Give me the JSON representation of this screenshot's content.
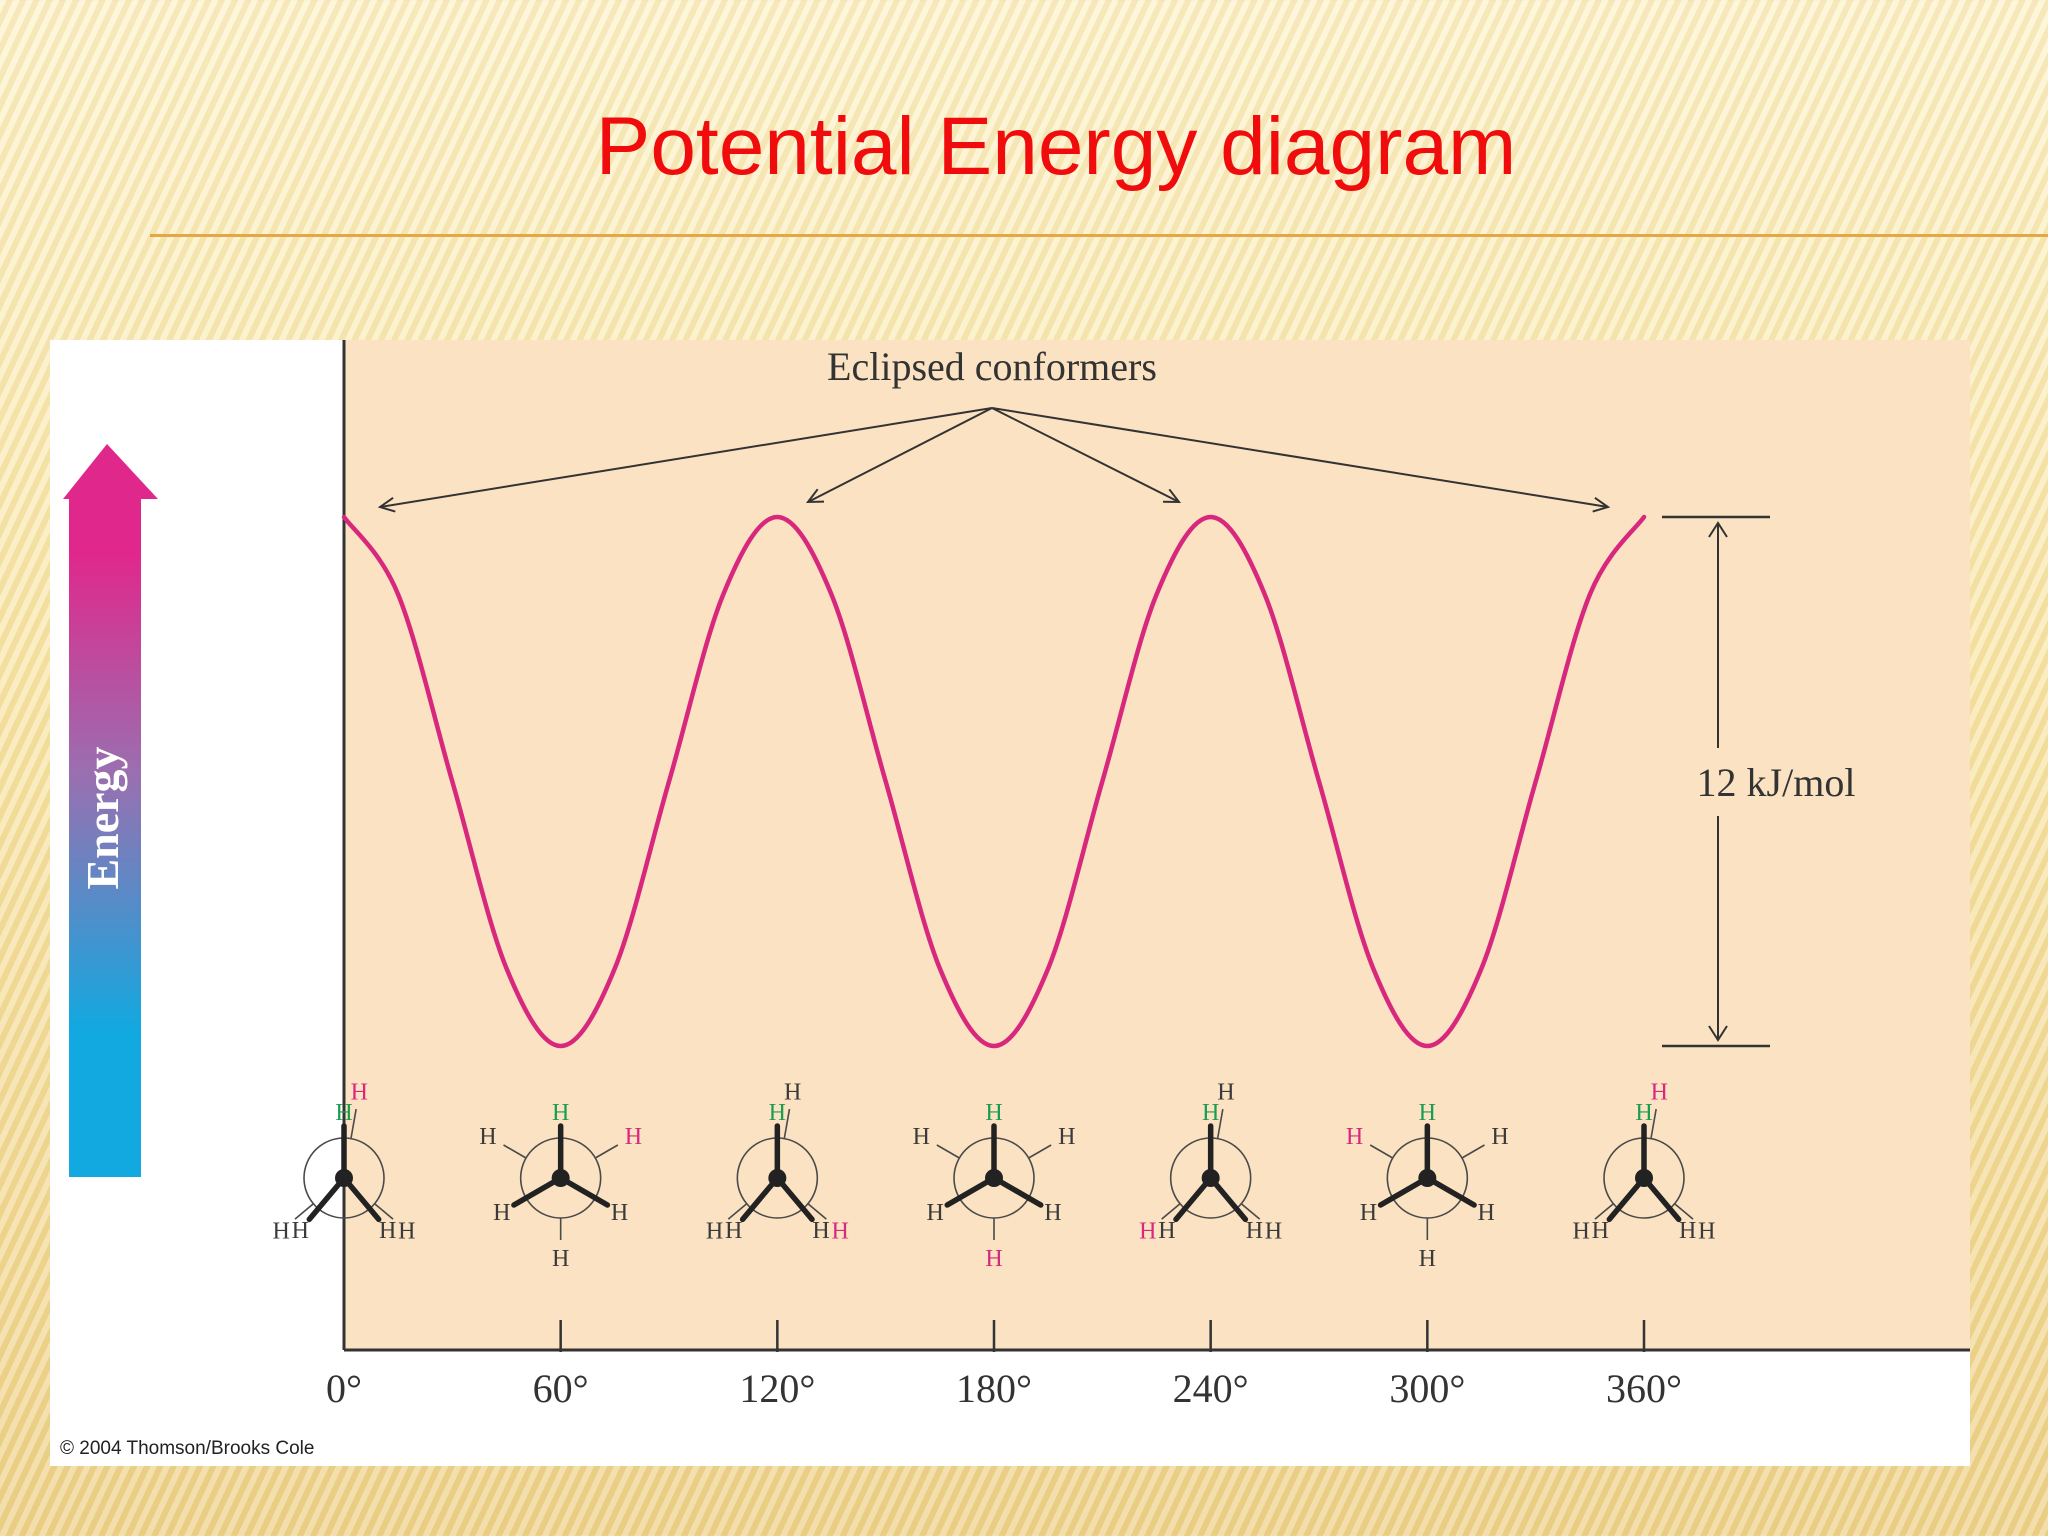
{
  "slide": {
    "title": "Potential Energy diagram"
  },
  "chart_data": {
    "type": "line",
    "title": "",
    "xlabel": "",
    "ylabel": "Energy",
    "x_ticks": [
      "0°",
      "60°",
      "120°",
      "180°",
      "240°",
      "300°",
      "360°"
    ],
    "xlim": [
      0,
      360
    ],
    "ylim": [
      0,
      12
    ],
    "series": [
      {
        "name": "",
        "color": "#d8287e",
        "x": [
          0,
          15,
          30,
          45,
          60,
          75,
          90,
          105,
          120,
          135,
          150,
          165,
          180,
          195,
          210,
          225,
          240,
          255,
          270,
          285,
          300,
          315,
          330,
          345,
          360
        ],
        "y": [
          12,
          10.24,
          6,
          1.76,
          0,
          1.76,
          6,
          10.24,
          12,
          10.24,
          6,
          1.76,
          0,
          1.76,
          6,
          10.24,
          12,
          10.24,
          6,
          1.76,
          0,
          1.76,
          6,
          10.24,
          12
        ]
      }
    ],
    "annotations": {
      "eclipsed_label": "Eclipsed conformers",
      "eclipsed_at": [
        0,
        120,
        240,
        360
      ],
      "barrier_label": "12 kJ/mol"
    },
    "axis_arrow_label": "Energy",
    "credit": "© 2004 Thomson/Brooks Cole",
    "newman": {
      "atom": "H",
      "colors": {
        "front_marked": "#1a9c52",
        "back_marked": "#d8287e",
        "plain": "#3a3a3a"
      }
    }
  }
}
